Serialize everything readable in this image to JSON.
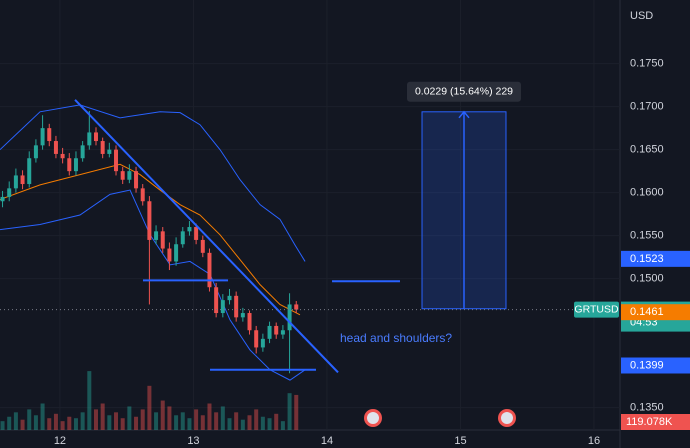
{
  "chart_data": {
    "type": "candlestick",
    "currency": "USD",
    "symbol": "GRTUSD",
    "countdown": "04:53",
    "x": [
      11.57,
      11.62,
      11.67,
      11.72,
      11.77,
      11.82,
      11.87,
      11.92,
      11.97,
      12.02,
      12.07,
      12.12,
      12.17,
      12.22,
      12.27,
      12.32,
      12.37,
      12.42,
      12.47,
      12.52,
      12.57,
      12.62,
      12.67,
      12.72,
      12.77,
      12.82,
      12.87,
      12.92,
      12.97,
      13.02,
      13.07,
      13.12,
      13.17,
      13.22,
      13.27,
      13.32,
      13.37,
      13.42,
      13.47,
      13.52,
      13.57,
      13.62,
      13.67,
      13.72,
      13.77
    ],
    "open": [
      0.159,
      0.1595,
      0.1605,
      0.162,
      0.161,
      0.164,
      0.1655,
      0.1675,
      0.166,
      0.1645,
      0.164,
      0.1625,
      0.164,
      0.1655,
      0.167,
      0.166,
      0.1645,
      0.165,
      0.1625,
      0.1615,
      0.1625,
      0.1605,
      0.159,
      0.1545,
      0.1555,
      0.1535,
      0.152,
      0.154,
      0.1555,
      0.156,
      0.1545,
      0.153,
      0.149,
      0.146,
      0.1475,
      0.148,
      0.1455,
      0.146,
      0.144,
      0.142,
      0.143,
      0.1445,
      0.1435,
      0.144,
      0.147
    ],
    "high": [
      0.1602,
      0.1613,
      0.1628,
      0.1626,
      0.1648,
      0.1662,
      0.169,
      0.168,
      0.1666,
      0.1652,
      0.1646,
      0.1648,
      0.166,
      0.1695,
      0.1676,
      0.1664,
      0.1658,
      0.1655,
      0.163,
      0.1633,
      0.163,
      0.161,
      0.1596,
      0.1562,
      0.156,
      0.1542,
      0.1548,
      0.156,
      0.1567,
      0.1564,
      0.155,
      0.1535,
      0.1495,
      0.1482,
      0.1488,
      0.1485,
      0.1466,
      0.1463,
      0.1445,
      0.1436,
      0.145,
      0.1449,
      0.1446,
      0.1483,
      0.1474
    ],
    "low": [
      0.1583,
      0.159,
      0.16,
      0.1604,
      0.1606,
      0.1635,
      0.165,
      0.1654,
      0.164,
      0.1634,
      0.162,
      0.162,
      0.1636,
      0.165,
      0.1655,
      0.164,
      0.1641,
      0.162,
      0.161,
      0.1611,
      0.16,
      0.1585,
      0.147,
      0.154,
      0.153,
      0.151,
      0.1515,
      0.1536,
      0.155,
      0.154,
      0.1525,
      0.1485,
      0.1455,
      0.1455,
      0.147,
      0.145,
      0.145,
      0.1435,
      0.1413,
      0.1415,
      0.1425,
      0.143,
      0.143,
      0.139,
      0.146
    ],
    "close": [
      0.1595,
      0.1605,
      0.162,
      0.161,
      0.164,
      0.1655,
      0.1675,
      0.166,
      0.1645,
      0.164,
      0.1625,
      0.164,
      0.1655,
      0.167,
      0.166,
      0.1645,
      0.165,
      0.1625,
      0.1615,
      0.1625,
      0.1605,
      0.159,
      0.1545,
      0.1555,
      0.1535,
      0.152,
      0.154,
      0.1555,
      0.156,
      0.1545,
      0.153,
      0.149,
      0.146,
      0.1475,
      0.148,
      0.1455,
      0.146,
      0.144,
      0.142,
      0.143,
      0.1445,
      0.1435,
      0.144,
      0.147,
      0.1464
    ],
    "up_color": "#26a69a",
    "down_color": "#ef5350",
    "volume": [
      30000,
      45000,
      60000,
      35000,
      70000,
      50000,
      90000,
      40000,
      55000,
      30000,
      45000,
      40000,
      60000,
      200000,
      70000,
      90000,
      50000,
      60000,
      40000,
      80000,
      45000,
      70000,
      150000,
      60000,
      100000,
      80000,
      50000,
      60000,
      40000,
      70000,
      50000,
      90000,
      60000,
      80000,
      40000,
      60000,
      35000,
      50000,
      70000,
      45000,
      40000,
      55000,
      30000,
      125000,
      119078
    ],
    "volume_ylim": [
      0,
      1460000
    ],
    "volume_label": {
      "value": 119078,
      "label": "119.078K"
    },
    "last_price": 0.1464,
    "xlim": [
      11.551,
      16.195
    ],
    "xticks": [
      12,
      13,
      14,
      15,
      16
    ],
    "ylim": [
      0.1324,
      0.1824
    ],
    "yticks": [
      {
        "value": 0.135,
        "label": "0.1350"
      },
      {
        "value": 0.15,
        "label": "0.1500"
      },
      {
        "value": 0.155,
        "label": "0.1550"
      },
      {
        "value": 0.16,
        "label": "0.1600"
      },
      {
        "value": 0.165,
        "label": "0.1650"
      },
      {
        "value": 0.17,
        "label": "0.1700"
      },
      {
        "value": 0.175,
        "label": "0.1750"
      }
    ],
    "grid": true,
    "bands": [
      {
        "color": "#2962ff",
        "x": [
          11.551,
          11.851,
          12.15,
          12.45,
          12.75,
          12.9,
          13.049,
          13.199,
          13.349,
          13.499,
          13.648,
          13.761,
          13.836
        ],
        "values": [
          0.165,
          0.1694,
          0.1702,
          0.1687,
          0.1694,
          0.1693,
          0.1679,
          0.165,
          0.1615,
          0.1586,
          0.1569,
          0.1539,
          0.152
        ]
      },
      {
        "color": "#2962ff",
        "x": [
          11.551,
          11.851,
          12.15,
          12.375,
          12.525,
          12.675,
          12.825,
          12.974,
          13.124,
          13.274,
          13.424,
          13.574,
          13.723,
          13.836
        ],
        "values": [
          0.1557,
          0.1563,
          0.1574,
          0.1598,
          0.1603,
          0.1551,
          0.1516,
          0.152,
          0.1505,
          0.1452,
          0.1417,
          0.1394,
          0.1382,
          0.1394
        ]
      },
      {
        "color": "#f57c00",
        "x": [
          11.551,
          11.851,
          12.15,
          12.45,
          12.6,
          12.75,
          12.9,
          13.049,
          13.199,
          13.349,
          13.499,
          13.648,
          13.798
        ],
        "values": [
          0.1592,
          0.1609,
          0.1621,
          0.1633,
          0.1621,
          0.1603,
          0.1586,
          0.1574,
          0.1551,
          0.1522,
          0.1493,
          0.147,
          0.1458
        ]
      }
    ],
    "price_labels": [
      {
        "value": 0.1523,
        "color": "#2962ff"
      },
      {
        "value": 0.1461,
        "color": "#f57c00"
      },
      {
        "value": 0.1399,
        "color": "#2962ff"
      }
    ],
    "drawings": {
      "color": "#2962ff",
      "lines": [
        {
          "x": [
            12.113,
            14.083
          ],
          "y": [
            0.1708,
            0.1391
          ]
        },
        {
          "x": [
            12.622,
            13.259
          ],
          "y": [
            0.1498,
            0.1498
          ]
        },
        {
          "x": [
            14.038,
            14.547
          ],
          "y": [
            0.1497,
            0.1497
          ]
        },
        {
          "x": [
            13.124,
            13.918
          ],
          "y": [
            0.1394,
            0.1394
          ]
        }
      ],
      "measure": {
        "x": [
          14.712,
          15.341
        ],
        "y": [
          0.1465,
          0.1694
        ],
        "label": "0.0229 (15.64%) 229"
      },
      "annotation": "head and shoulders?"
    }
  }
}
